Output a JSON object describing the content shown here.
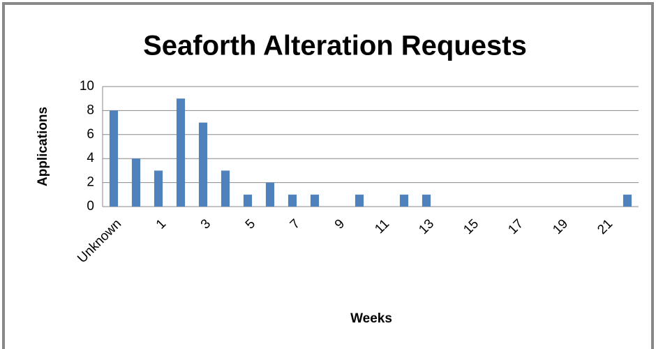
{
  "chart_data": {
    "type": "bar",
    "title": "Seaforth Alteration Requests",
    "x_label": "Weeks",
    "y_label": "Applications",
    "categories": [
      "Unknown",
      null,
      "1",
      null,
      "3",
      null,
      "5",
      null,
      "7",
      null,
      "9",
      null,
      "11",
      null,
      "13",
      null,
      "15",
      null,
      "17",
      null,
      "19",
      null,
      "21",
      null
    ],
    "values": [
      8,
      4,
      3,
      9,
      7,
      3,
      1,
      2,
      1,
      1,
      0,
      1,
      0,
      1,
      1,
      0,
      0,
      0,
      0,
      0,
      0,
      0,
      0,
      1
    ],
    "color": "#4f81bd",
    "ylim": [
      0,
      10
    ],
    "yticks": [
      0,
      2,
      4,
      6,
      8,
      10
    ],
    "grid": true
  }
}
